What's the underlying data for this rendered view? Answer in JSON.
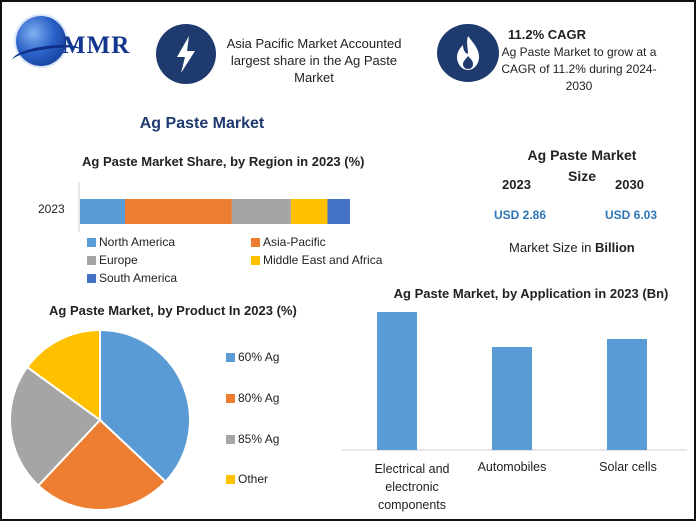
{
  "header": {
    "logo_text": "MMR",
    "left_block": {
      "icon": "lightning-bolt-icon",
      "text": "Asia Pacific Market Accounted largest share in the Ag Paste Market"
    },
    "right_block": {
      "icon": "flame-icon",
      "title": "11.2% CAGR",
      "text": "Ag Paste Market to grow at a CAGR of 11.2% during 2024-2030"
    }
  },
  "main_title": "Ag Paste Market",
  "market_size": {
    "title": "Ag Paste Market Size",
    "year1": "2023",
    "year2": "2030",
    "value1": "USD 2.86",
    "value2": "USD 6.03",
    "unit_label_prefix": "Market Size in ",
    "unit_label_bold": "Billion"
  },
  "colors": {
    "blue": "#5b9bd5",
    "orange": "#ed7d31",
    "gray": "#a5a5a5",
    "yellow": "#ffc000",
    "darkblue": "#4472c4",
    "navy": "#1f3a6e"
  },
  "chart_data": [
    {
      "type": "bar",
      "orientation": "horizontal-stacked",
      "title": "Ag Paste Market Share, by Region in 2023 (%)",
      "categories": [
        "2023"
      ],
      "series": [
        {
          "name": "North America",
          "values": [
            16
          ]
        },
        {
          "name": "Asia-Pacific",
          "values": [
            38
          ]
        },
        {
          "name": "Europe",
          "values": [
            21
          ]
        },
        {
          "name": "Middle East and Africa",
          "values": [
            13
          ]
        },
        {
          "name": "South America",
          "values": [
            8
          ]
        }
      ],
      "legend_position": "bottom"
    },
    {
      "type": "pie",
      "title": "Ag Paste Market, by Product In 2023 (%)",
      "labels": [
        "60% Ag",
        "80% Ag",
        "85% Ag",
        "Other"
      ],
      "values": [
        37,
        25,
        23,
        15
      ],
      "legend_position": "right"
    },
    {
      "type": "bar",
      "title": "Ag Paste Market, by Application in 2023 (Bn)",
      "categories": [
        "Electrical and electronic components",
        "Automobiles",
        "Solar cells"
      ],
      "values": [
        1.38,
        1.03,
        1.11
      ],
      "ylim": [
        0,
        1.4
      ],
      "grid": false
    }
  ]
}
